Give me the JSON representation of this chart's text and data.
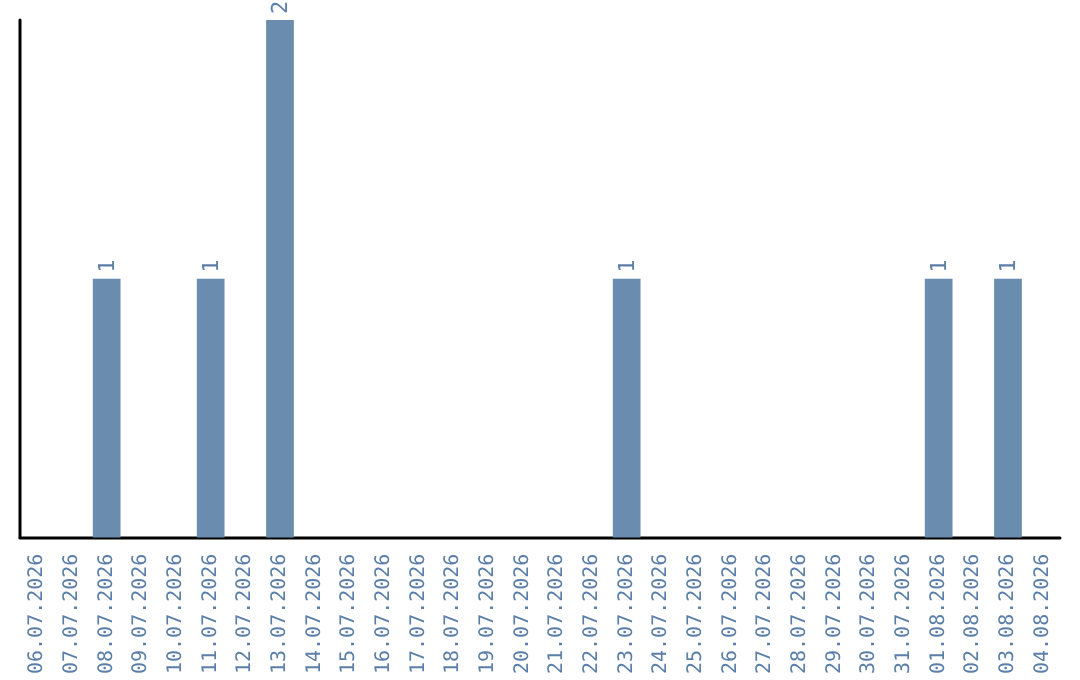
{
  "chart_data": {
    "type": "bar",
    "categories": [
      "06.07.2026",
      "07.07.2026",
      "08.07.2026",
      "09.07.2026",
      "10.07.2026",
      "11.07.2026",
      "12.07.2026",
      "13.07.2026",
      "14.07.2026",
      "15.07.2026",
      "16.07.2026",
      "17.07.2026",
      "18.07.2026",
      "19.07.2026",
      "20.07.2026",
      "21.07.2026",
      "22.07.2026",
      "23.07.2026",
      "24.07.2026",
      "25.07.2026",
      "26.07.2026",
      "27.07.2026",
      "28.07.2026",
      "29.07.2026",
      "30.07.2026",
      "31.07.2026",
      "01.08.2026",
      "02.08.2026",
      "03.08.2026",
      "04.08.2026"
    ],
    "values": [
      0,
      0,
      1,
      0,
      0,
      1,
      0,
      2,
      0,
      0,
      0,
      0,
      0,
      0,
      0,
      0,
      0,
      1,
      0,
      0,
      0,
      0,
      0,
      0,
      0,
      0,
      1,
      0,
      1,
      0
    ],
    "value_labels": [
      null,
      null,
      "1",
      null,
      null,
      "1",
      null,
      "2",
      null,
      null,
      null,
      null,
      null,
      null,
      null,
      null,
      null,
      "1",
      null,
      null,
      null,
      null,
      null,
      null,
      null,
      null,
      "1",
      null,
      "1",
      null
    ],
    "color": "#6a8caf"
  }
}
